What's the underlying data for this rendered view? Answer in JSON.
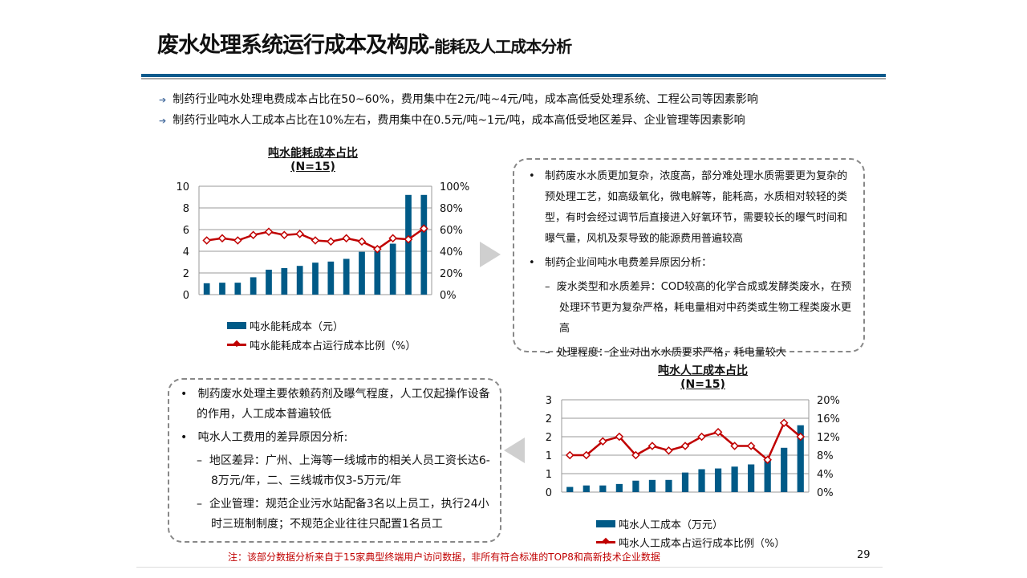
{
  "header": {
    "title_main": "废水处理系统运行成本及构成",
    "title_sub": "-能耗及人工成本分析"
  },
  "bullets": [
    "制药行业吨水处理电费成本占比在50~60%，费用集中在2元/吨~4元/吨，成本高低受处理系统、工程公司等因素影响",
    "制药行业吨水人工成本占比在10%左右，费用集中在0.5元/吨~1元/吨，成本高低受地区差异、企业管理等因素影响"
  ],
  "colors": {
    "bar": "#005a87",
    "line": "#c00000",
    "accent": "#0b5a8c"
  },
  "chart_data": [
    {
      "type": "bar+line",
      "title": "吨水能耗成本占比",
      "subtitle": "(N=15)",
      "left_ticks": [
        "0",
        "2",
        "4",
        "6",
        "8",
        "10"
      ],
      "right_ticks": [
        "0%",
        "20%",
        "40%",
        "60%",
        "80%",
        "100%"
      ],
      "ylim": [
        0,
        10
      ],
      "y2lim": [
        0,
        100
      ],
      "grid": true,
      "legend": "bottom",
      "series": [
        {
          "name": "吨水能耗成本（元）",
          "type": "bar",
          "values": [
            1.05,
            1.1,
            1.1,
            1.6,
            2.3,
            2.45,
            2.65,
            2.95,
            3.05,
            3.3,
            3.95,
            4.0,
            4.7,
            9.2,
            9.2
          ]
        },
        {
          "name": "吨水能耗成本占运行成本比例（%）",
          "type": "line",
          "values": [
            50,
            52,
            50,
            55,
            58,
            55,
            56,
            50,
            49,
            52,
            49,
            42,
            52,
            51,
            61
          ]
        }
      ]
    },
    {
      "type": "bar+line",
      "title": "吨水人工成本占比",
      "subtitle": "(N=15)",
      "left_ticks": [
        "0",
        "1",
        "1",
        "2",
        "2",
        "3"
      ],
      "right_ticks": [
        "0%",
        "4%",
        "8%",
        "12%",
        "16%",
        "20%"
      ],
      "ylim": [
        0,
        2.5
      ],
      "y2lim": [
        0,
        20
      ],
      "grid": true,
      "legend": "bottom",
      "series": [
        {
          "name": "吨水人工成本（万元）",
          "type": "bar",
          "values": [
            0.14,
            0.18,
            0.18,
            0.22,
            0.31,
            0.33,
            0.33,
            0.53,
            0.62,
            0.64,
            0.69,
            0.75,
            0.88,
            1.2,
            1.81
          ]
        },
        {
          "name": "吨水人工成本占运行成本比例（%）",
          "type": "line",
          "values": [
            8,
            8,
            11,
            12,
            8,
            10,
            9,
            10,
            12,
            13,
            10,
            10,
            7,
            15,
            12
          ]
        }
      ]
    }
  ],
  "energy_box": {
    "items": [
      {
        "level": 1,
        "text": "制药废水水质更加复杂，浓度高，部分难处理水质需要更为复杂的预处理工艺，如高级氧化，微电解等，能耗高，水质相对较轻的类型，有时会经过调节后直接进入好氧环节，需要较长的曝气时间和曝气量，风机及泵导致的能源费用普遍较高"
      },
      {
        "level": 1,
        "text": "制药企业间吨水电费差异原因分析："
      },
      {
        "level": 2,
        "text": "废水类型和水质差异：COD较高的化学合成或发酵类废水，在预处理环节更为复杂严格，耗电量相对中药类或生物工程类废水更高"
      },
      {
        "level": 2,
        "text": "处理程度：企业对出水水质要求严格，耗电量较大"
      }
    ]
  },
  "labor_box": {
    "items": [
      {
        "level": 1,
        "text": "制药废水处理主要依赖药剂及曝气程度，人工仅起操作设备的作用，人工成本普遍较低"
      },
      {
        "level": 1,
        "text": "吨水人工费用的差异原因分析:"
      },
      {
        "level": 2,
        "text": "地区差异：广州、上海等一线城市的相关人员工资长达6-8万元/年，二、三线城市仅3-5万元/年"
      },
      {
        "level": 2,
        "text": "企业管理：规范企业污水站配备3名以上员工，执行24小时三班制制度；不规范企业往往只配置1名员工"
      }
    ]
  },
  "footnote": "注：该部分数据分析来自于15家典型终端用户访问数据，非所有符合标准的TOP8和高新技术企业数据",
  "page_number": "29"
}
